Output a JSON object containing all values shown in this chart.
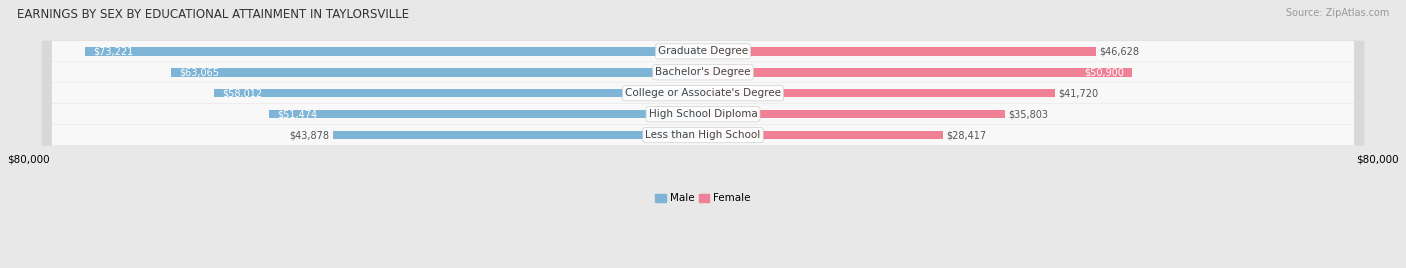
{
  "title": "EARNINGS BY SEX BY EDUCATIONAL ATTAINMENT IN TAYLORSVILLE",
  "source": "Source: ZipAtlas.com",
  "categories": [
    "Less than High School",
    "High School Diploma",
    "College or Associate's Degree",
    "Bachelor's Degree",
    "Graduate Degree"
  ],
  "male_values": [
    43878,
    51474,
    58012,
    63065,
    73221
  ],
  "female_values": [
    28417,
    35803,
    41720,
    50900,
    46628
  ],
  "male_color": "#7eb5d6",
  "female_color": "#f08096",
  "male_label": "Male",
  "female_label": "Female",
  "xlim": 80000,
  "bg_color": "#e8e8e8",
  "row_bg_light": "#f5f5f5",
  "row_bg_dark": "#e0e0e0",
  "title_fontsize": 8.5,
  "source_fontsize": 7,
  "label_fontsize": 7.5,
  "value_fontsize": 7,
  "legend_fontsize": 7.5,
  "axis_fontsize": 7.5
}
